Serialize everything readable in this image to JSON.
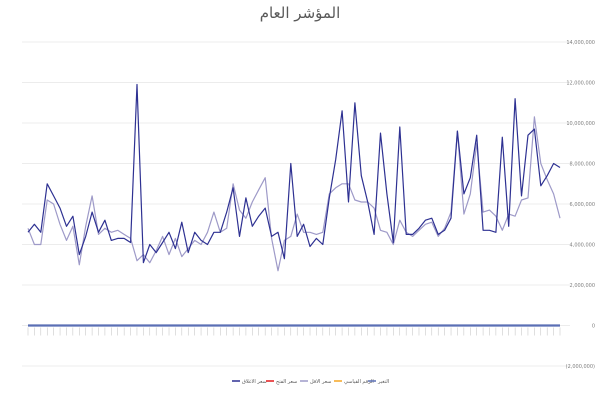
{
  "chart_data": {
    "type": "line",
    "title": "المؤشر العام",
    "xlabel": "",
    "ylabel": "",
    "ylim": [
      -2000000,
      14000000
    ],
    "yticks": [
      {
        "value": 14000000,
        "label": "14,000,000"
      },
      {
        "value": 12000000,
        "label": "12,000,000"
      },
      {
        "value": 10000000,
        "label": "10,000,000"
      },
      {
        "value": 8000000,
        "label": "8,000,000"
      },
      {
        "value": 6000000,
        "label": "6,000,000"
      },
      {
        "value": 4000000,
        "label": "4,000,000"
      },
      {
        "value": 2000000,
        "label": "2,000,000"
      },
      {
        "value": 0,
        "label": "0"
      },
      {
        "value": -2000000,
        "label": "(2,000,000)"
      }
    ],
    "grid": true,
    "legend_position": "bottom",
    "series": [
      {
        "name": "سعر الاغلاق",
        "color": "#2e3192",
        "values": [
          4600000,
          5000000,
          4600000,
          7000000,
          6400000,
          5800000,
          4900000,
          5400000,
          3500000,
          4400000,
          5600000,
          4600000,
          5200000,
          4200000,
          4300000,
          4300000,
          4100000,
          11900000,
          3100000,
          4000000,
          3600000,
          4100000,
          4600000,
          3800000,
          5100000,
          3600000,
          4600000,
          4200000,
          4000000,
          4600000,
          4600000,
          5600000,
          6800000,
          4400000,
          6300000,
          4900000,
          5400000,
          5800000,
          4400000,
          4600000,
          3300000,
          8000000,
          4400000,
          5000000,
          3900000,
          4300000,
          4000000,
          6300000,
          8200000,
          10600000,
          6100000,
          11000000,
          7400000,
          6100000,
          4500000,
          9500000,
          6500000,
          4100000,
          9800000,
          4500000,
          4500000,
          4800000,
          5200000,
          5300000,
          4500000,
          4700000,
          5300000,
          9600000,
          6500000,
          7300000,
          9400000,
          4700000,
          4700000,
          4600000,
          9300000,
          4900000,
          11200000,
          6400000,
          9400000,
          9700000,
          6900000,
          7400000,
          8000000,
          7800000
        ]
      },
      {
        "name": "سعر الفتح",
        "color": "#e31a1c",
        "values": [
          0,
          0,
          0,
          0,
          0,
          0,
          0,
          0,
          0,
          0,
          0,
          0,
          0,
          0,
          0,
          0,
          0,
          0,
          0,
          0,
          0,
          0,
          0,
          0,
          0,
          0,
          0,
          0,
          0,
          0,
          0,
          0,
          0,
          0,
          0,
          0,
          0,
          0,
          0,
          0,
          0,
          0,
          0,
          0,
          0,
          0,
          0,
          0,
          0,
          0,
          0,
          0,
          0,
          0,
          0,
          0,
          0,
          0,
          0,
          0,
          0,
          0,
          0,
          0,
          0,
          0,
          0,
          0,
          0,
          0,
          0,
          0,
          0,
          0,
          0,
          0,
          0,
          0,
          0,
          0,
          0,
          0,
          0,
          0
        ]
      },
      {
        "name": "سعر الاقل",
        "color": "#9e9ac8",
        "values": [
          4800000,
          4000000,
          4000000,
          6200000,
          6000000,
          5000000,
          4200000,
          4900000,
          3000000,
          4900000,
          6400000,
          4500000,
          4800000,
          4600000,
          4700000,
          4500000,
          4300000,
          3200000,
          3500000,
          3100000,
          3700000,
          4400000,
          3500000,
          4300000,
          3400000,
          3800000,
          4200000,
          4000000,
          4600000,
          5600000,
          4600000,
          4800000,
          7000000,
          5700000,
          5300000,
          6100000,
          6700000,
          7300000,
          4300000,
          2700000,
          4200000,
          4400000,
          5500000,
          4600000,
          4600000,
          4500000,
          4600000,
          6500000,
          6800000,
          7000000,
          7000000,
          6200000,
          6100000,
          6100000,
          5800000,
          4700000,
          4600000,
          4000000,
          5200000,
          4600000,
          4400000,
          4700000,
          5000000,
          5100000,
          4400000,
          4800000,
          5600000,
          9600000,
          5500000,
          6500000,
          9000000,
          5600000,
          5700000,
          5400000,
          4700000,
          5500000,
          5400000,
          6200000,
          6300000,
          10300000,
          8000000,
          7200000,
          6500000,
          5300000
        ]
      },
      {
        "name": "الرقم القياسي",
        "color": "#f5a623",
        "values": [
          0,
          0,
          0,
          0,
          0,
          0,
          0,
          0,
          0,
          0,
          0,
          0,
          0,
          0,
          0,
          0,
          0,
          0,
          0,
          0,
          0,
          0,
          0,
          0,
          0,
          0,
          0,
          0,
          0,
          0,
          0,
          0,
          0,
          0,
          0,
          0,
          0,
          0,
          0,
          0,
          0,
          0,
          0,
          0,
          0,
          0,
          0,
          0,
          0,
          0,
          0,
          0,
          0,
          0,
          0,
          0,
          0,
          0,
          0,
          0,
          0,
          0,
          0,
          0,
          0,
          0,
          0,
          0,
          0,
          0,
          0,
          0,
          0,
          0,
          0,
          0,
          0,
          0,
          0,
          0,
          0,
          0,
          0,
          0
        ]
      },
      {
        "name": "التغير",
        "color": "#5b6fb5",
        "values": [
          0,
          0,
          0,
          0,
          0,
          0,
          0,
          0,
          0,
          0,
          0,
          0,
          0,
          0,
          0,
          0,
          0,
          0,
          0,
          0,
          0,
          0,
          0,
          0,
          0,
          0,
          0,
          0,
          0,
          0,
          0,
          0,
          0,
          0,
          0,
          0,
          0,
          0,
          0,
          0,
          0,
          0,
          0,
          0,
          0,
          0,
          0,
          0,
          0,
          0,
          0,
          0,
          0,
          0,
          0,
          0,
          0,
          0,
          0,
          0,
          0,
          0,
          0,
          0,
          0,
          0,
          0,
          0,
          0,
          0,
          0,
          0,
          0,
          0,
          0,
          0,
          0,
          0,
          0,
          0,
          0,
          0,
          0,
          0
        ]
      }
    ]
  }
}
